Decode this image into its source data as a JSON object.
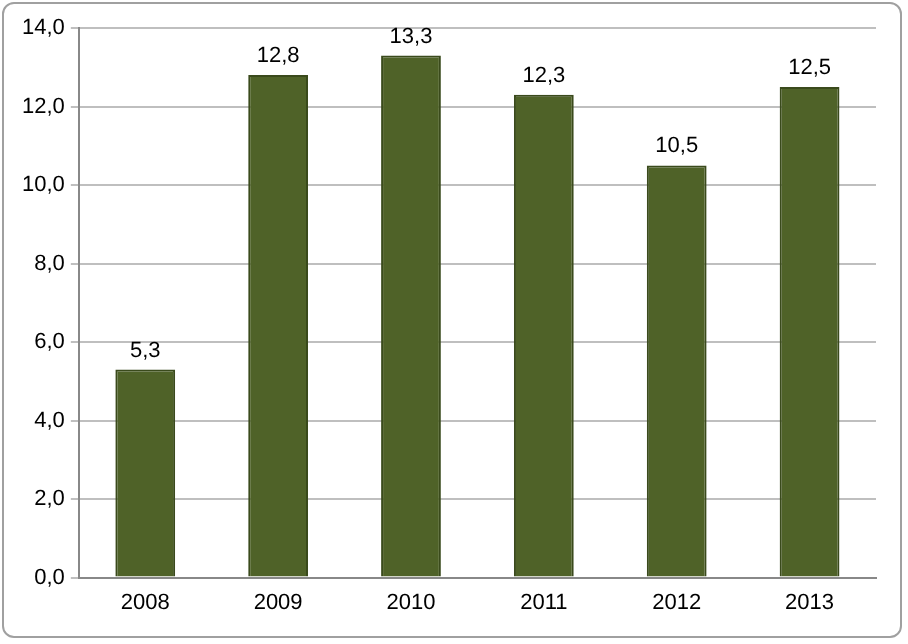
{
  "chart_data": {
    "type": "bar",
    "categories": [
      "2008",
      "2009",
      "2010",
      "2011",
      "2012",
      "2013"
    ],
    "values": [
      5.3,
      12.8,
      13.3,
      12.3,
      10.5,
      12.5
    ],
    "value_labels": [
      "5,3",
      "12,8",
      "13,3",
      "12,3",
      "10,5",
      "12,5"
    ],
    "color": "#4f6228",
    "ylim": [
      0,
      14
    ],
    "yticks": [
      {
        "value": 0,
        "label": "0,0"
      },
      {
        "value": 2,
        "label": "2,0"
      },
      {
        "value": 4,
        "label": "4,0"
      },
      {
        "value": 6,
        "label": "6,0"
      },
      {
        "value": 8,
        "label": "8,0"
      },
      {
        "value": 10,
        "label": "10,0"
      },
      {
        "value": 12,
        "label": "12,0"
      },
      {
        "value": 14,
        "label": "14,0"
      }
    ],
    "grid": "y",
    "legend": false
  }
}
